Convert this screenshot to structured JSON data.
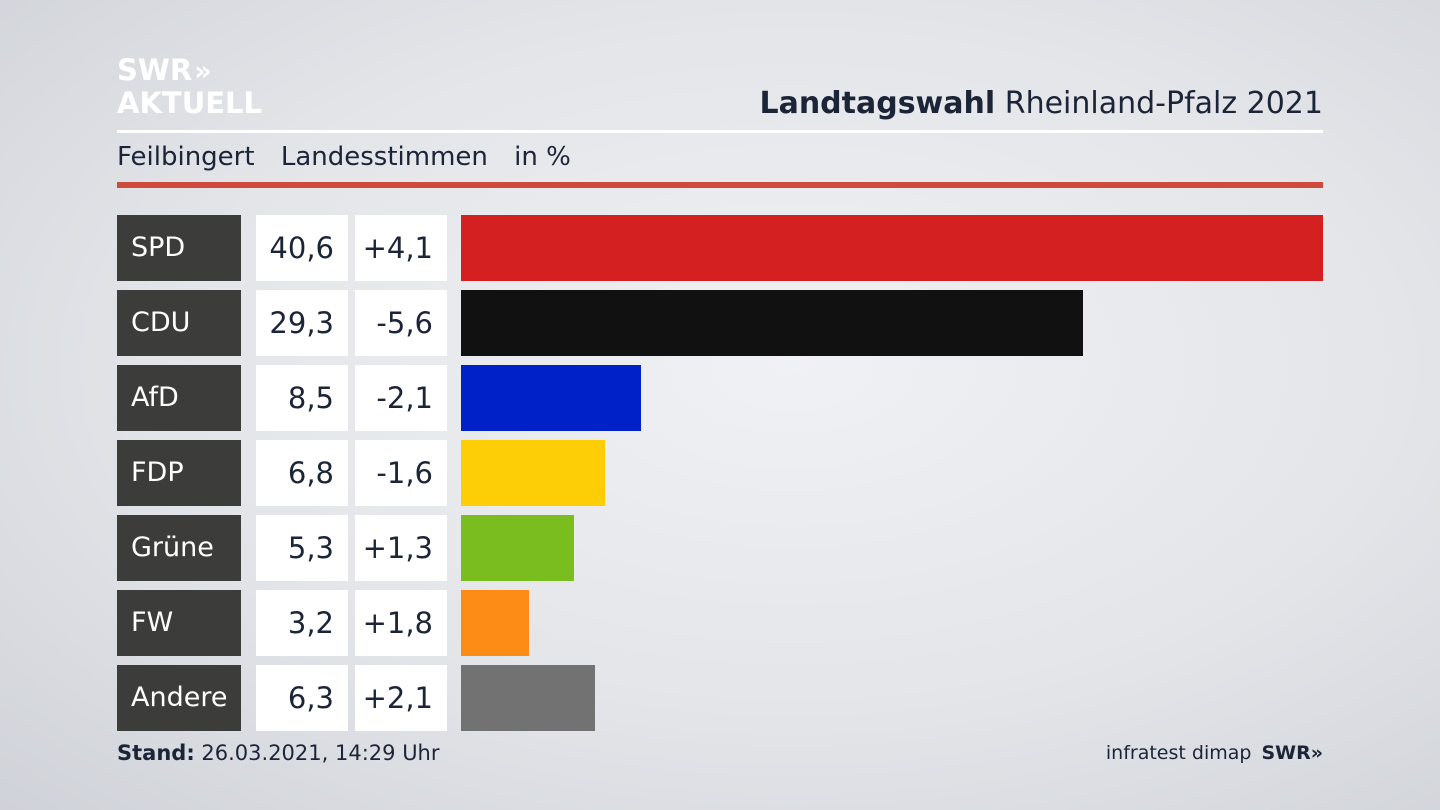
{
  "logo": {
    "line1": "SWR",
    "line1_arrows": "»",
    "line2": "AKTUELL"
  },
  "header": {
    "title_bold": "Landtagswahl",
    "title_rest": "Rheinland-Pfalz 2021"
  },
  "subheader": {
    "place": "Feilbingert",
    "type": "Landesstimmen",
    "unit": "in %"
  },
  "chart_data": {
    "type": "bar",
    "orientation": "horizontal",
    "categories": [
      "SPD",
      "CDU",
      "AfD",
      "FDP",
      "Grüne",
      "FW",
      "Andere"
    ],
    "values": [
      40.6,
      29.3,
      8.5,
      6.8,
      5.3,
      3.2,
      6.3
    ],
    "value_labels": [
      "40,6",
      "29,3",
      "8,5",
      "6,8",
      "5,3",
      "3,2",
      "6,3"
    ],
    "changes": [
      "+4,1",
      "-5,6",
      "-2,1",
      "-1,6",
      "+1,3",
      "+1,8",
      "+2,1"
    ],
    "colors": [
      "#d52021",
      "#111111",
      "#0021c7",
      "#fdcd05",
      "#7abd1e",
      "#fd8c17",
      "#727272"
    ],
    "unit": "%"
  },
  "footer": {
    "stand_label": "Stand:",
    "stand_value": "26.03.2021, 14:29 Uhr",
    "source": "infratest dimap",
    "brand": "SWR",
    "brand_arrows": "»"
  }
}
